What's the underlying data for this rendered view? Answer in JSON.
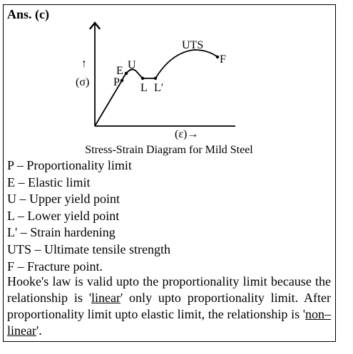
{
  "answer": "Ans. (c)",
  "diagram": {
    "labels": {
      "arrow_up": "↑",
      "stress": "(σ)",
      "p": "P",
      "e": "E",
      "u": "U",
      "l": "L",
      "l_prime": "L′",
      "uts": "UTS",
      "f": "F",
      "strain": "(ε)→"
    },
    "caption": "Stress-Strain Diagram for Mild Steel"
  },
  "definitions": [
    "P – Proportionality limit",
    "E – Elastic limit",
    "U – Upper yield point",
    "L – Lower yield point",
    "L' – Strain hardening",
    "UTS – Ultimate tensile strength",
    "F – Fracture point."
  ],
  "explanation": [
    "Hooke's law is valid upto the proportionality limit because the relationship is '",
    "linear",
    "' only upto proportionality limit. After proportionality limit upto elastic limit, the relationship is '",
    "non–linear",
    "'."
  ]
}
